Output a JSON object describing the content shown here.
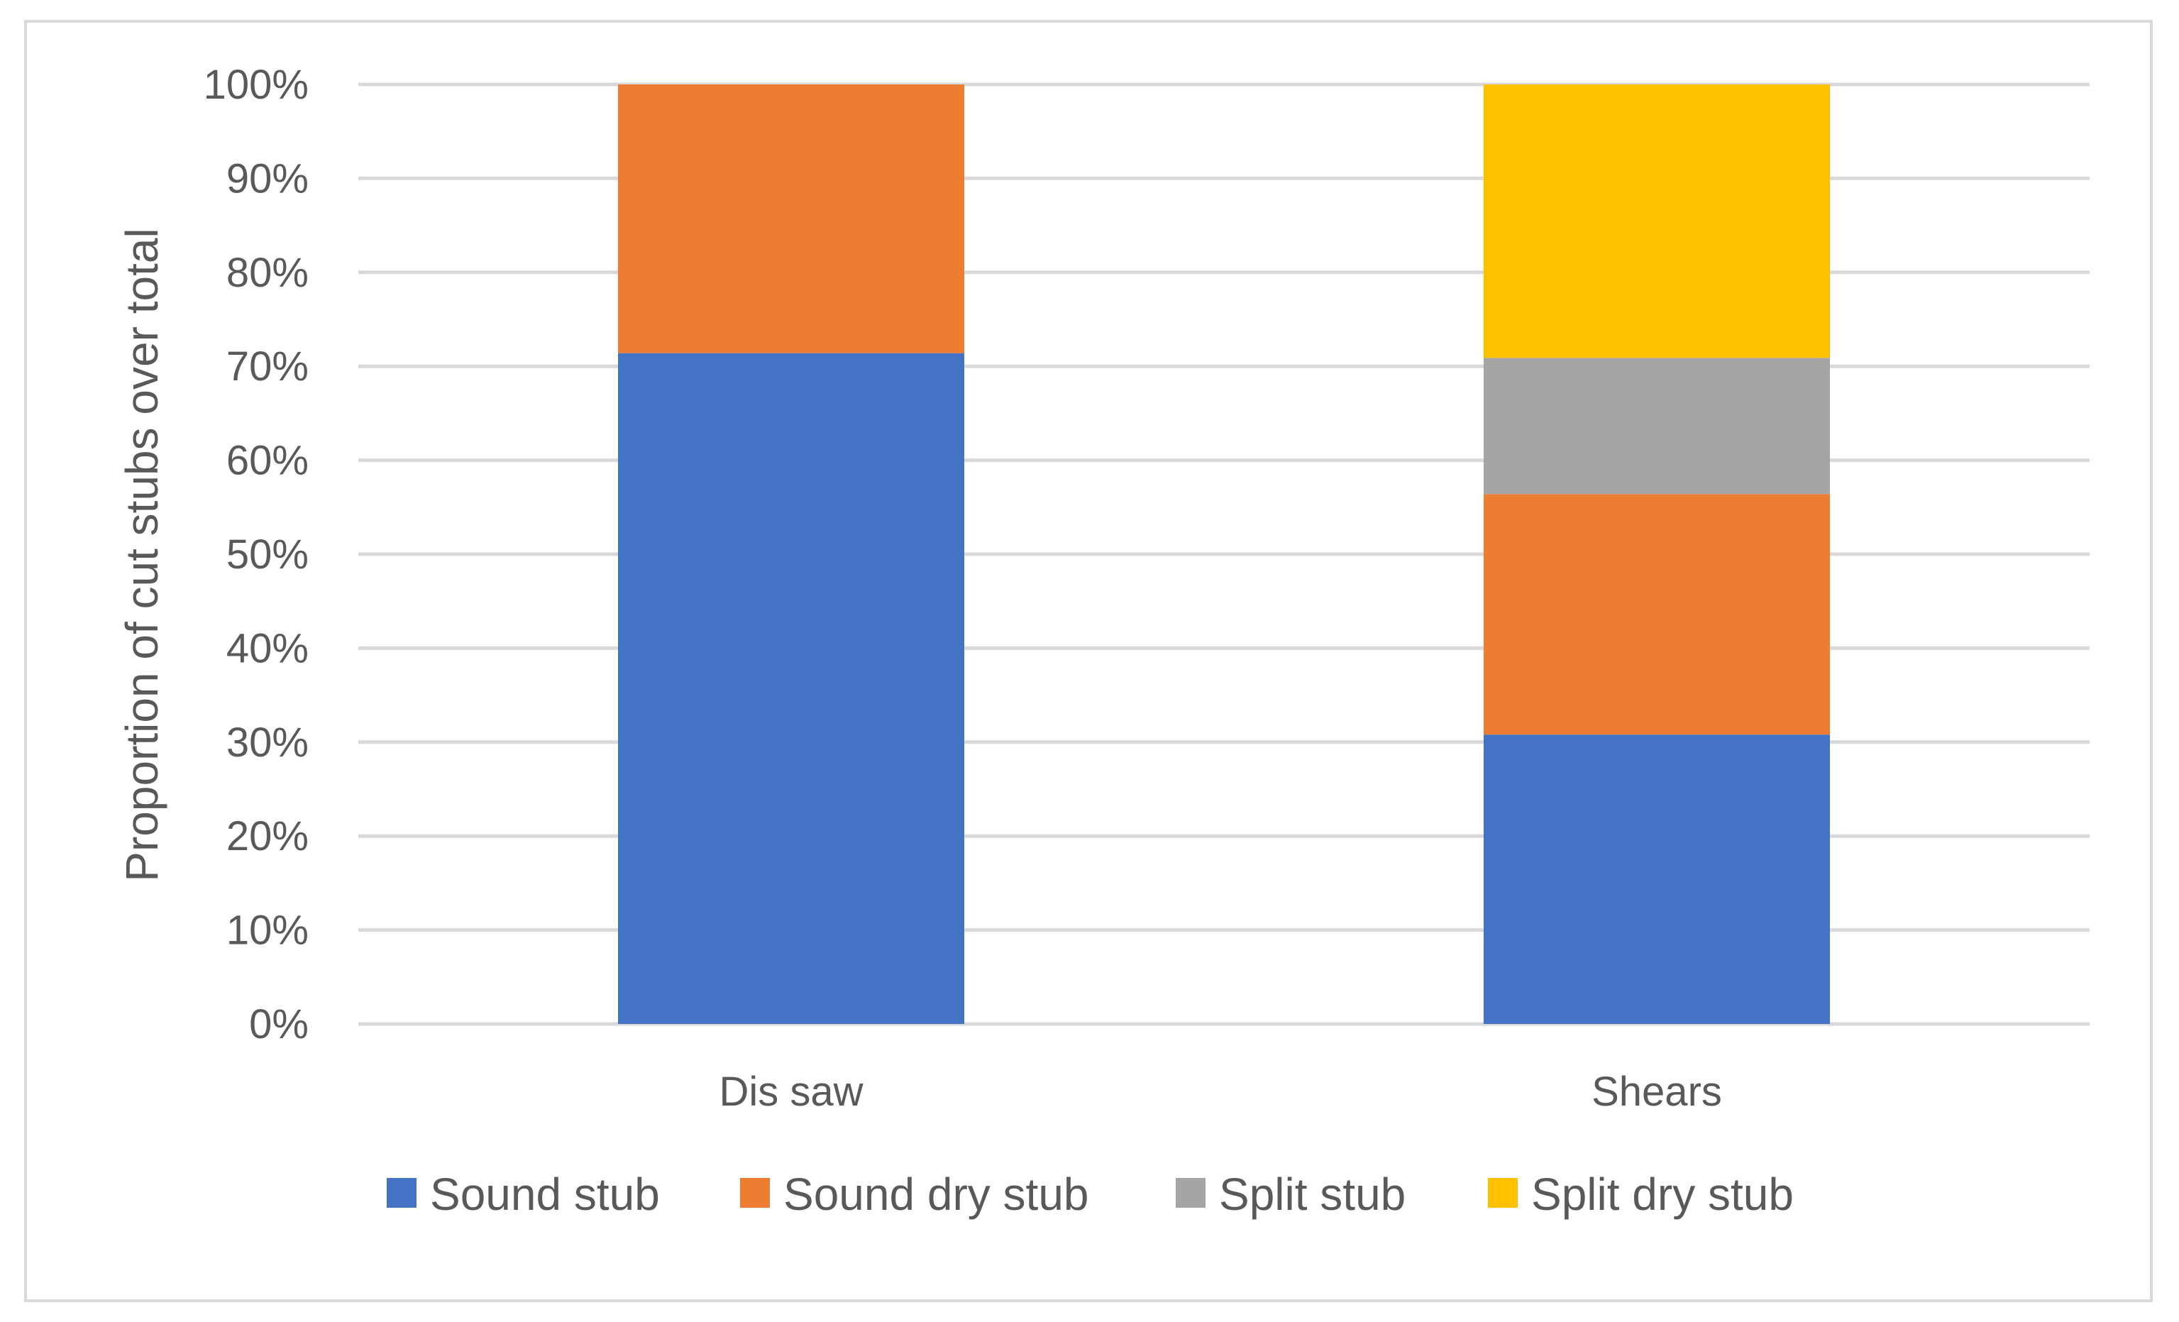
{
  "chart_data": {
    "type": "bar",
    "stacked": true,
    "categories": [
      "Dis saw",
      "Shears"
    ],
    "series": [
      {
        "name": "Sound stub",
        "color": "#4472C4",
        "values": [
          71.4,
          30.8
        ]
      },
      {
        "name": "Sound dry stub",
        "color": "#ED7D31",
        "values": [
          28.6,
          25.6
        ]
      },
      {
        "name": "Split stub",
        "color": "#A5A5A5",
        "values": [
          0,
          14.5
        ]
      },
      {
        "name": "Split dry stub",
        "color": "#FFC000",
        "values": [
          0,
          29.1
        ]
      }
    ],
    "ylabel": "Proportion of cut stubs over total",
    "xlabel": "",
    "ylim": [
      0,
      100
    ],
    "yticks": [
      "0%",
      "10%",
      "20%",
      "30%",
      "40%",
      "50%",
      "60%",
      "70%",
      "80%",
      "90%",
      "100%"
    ],
    "grid": true,
    "legend": "bottom",
    "colors": {
      "gridline": "#D9D9D9",
      "text": "#595959",
      "border": "#D9D9D9"
    }
  }
}
